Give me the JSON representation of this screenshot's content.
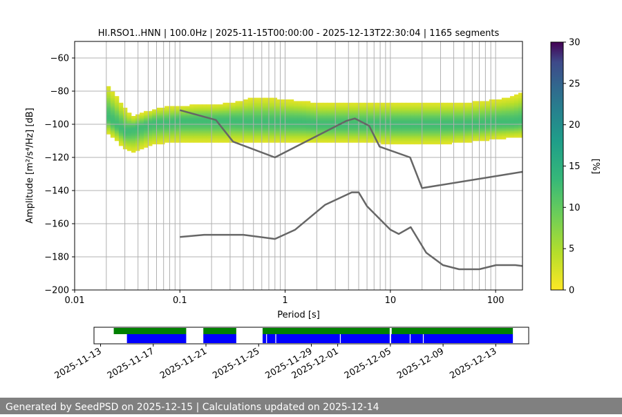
{
  "chart_data": [
    {
      "type": "heatmap",
      "title": "HI.RSO1..HNN | 100.0Hz | 2025-11-15T00:00:00 - 2025-12-13T22:30:04 | 1165 segments",
      "xlabel": "Period [s]",
      "ylabel": "Amplitude [m²/s⁴/Hz] [dB]",
      "x_scale": "log",
      "xlim": [
        0.01,
        180
      ],
      "ylim": [
        -200,
        -50
      ],
      "x_ticks": [
        0.01,
        0.1,
        1,
        10,
        100
      ],
      "x_tick_labels": [
        "0.01",
        "0.1",
        "1",
        "10",
        "100"
      ],
      "y_ticks": [
        -200,
        -180,
        -160,
        -140,
        -120,
        -100,
        -80,
        -60
      ],
      "y_tick_labels": [
        "−200",
        "−180",
        "−160",
        "−140",
        "−120",
        "−100",
        "−80",
        "−60"
      ],
      "grid": true,
      "colorbar": {
        "label": "[%]",
        "range": [
          0,
          30
        ],
        "ticks": [
          0,
          5,
          10,
          15,
          20,
          25,
          30
        ],
        "colormap": "viridis_r"
      },
      "psd_band": {
        "periods": [
          0.02,
          0.025,
          0.03,
          0.035,
          0.04,
          0.05,
          0.06,
          0.08,
          0.1,
          0.15,
          0.2,
          0.3,
          0.5,
          0.7,
          1,
          1.5,
          2,
          3,
          5,
          7,
          10,
          15,
          20,
          30,
          50,
          70,
          100,
          150,
          180
        ],
        "upper": [
          -75,
          -83,
          -90,
          -95,
          -94,
          -92,
          -90,
          -89,
          -89,
          -88,
          -88,
          -87,
          -84,
          -84,
          -85,
          -86,
          -87,
          -87,
          -87,
          -87,
          -87,
          -87,
          -87,
          -87,
          -87,
          -86,
          -85,
          -83,
          -81
        ],
        "lower": [
          -105,
          -110,
          -115,
          -117,
          -116,
          -113,
          -112,
          -111,
          -111,
          -111,
          -111,
          -111,
          -111,
          -111,
          -111,
          -111,
          -111,
          -111,
          -111,
          -111,
          -112,
          -112,
          -112,
          -112,
          -111,
          -110,
          -109,
          -108,
          -108
        ],
        "peak": [
          -95,
          -100,
          -104,
          -103,
          -102,
          -100,
          -99,
          -99,
          -98,
          -98,
          -98,
          -98,
          -99,
          -99,
          -99,
          -99,
          -100,
          -100,
          -100,
          -100,
          -100,
          -100,
          -100,
          -100,
          -100,
          -100,
          -99,
          -99,
          -98
        ]
      },
      "series": [
        {
          "role": "noise-model-high",
          "color": "#666666",
          "x": [
            0.1,
            0.22,
            0.32,
            0.8,
            3.8,
            4.6,
            6.3,
            7.9,
            15.4,
            20,
            180
          ],
          "y": [
            -91.5,
            -97.4,
            -110.5,
            -120,
            -98,
            -96.5,
            -101,
            -113.5,
            -120,
            -138.5,
            -128.7
          ]
        },
        {
          "role": "noise-model-low",
          "color": "#666666",
          "x": [
            0.1,
            0.17,
            0.4,
            0.8,
            1.24,
            2.4,
            4.3,
            5.0,
            6.0,
            10,
            12,
            15.6,
            21.9,
            31.6,
            45,
            70,
            101,
            154,
            180
          ],
          "y": [
            -168,
            -166.7,
            -166.7,
            -169.2,
            -163.7,
            -148.6,
            -141.1,
            -141.1,
            -149.5,
            -163.6,
            -166.2,
            -162.1,
            -177.5,
            -185,
            -187.5,
            -187.5,
            -185,
            -185,
            -185.5
          ]
        }
      ]
    },
    {
      "type": "timeline",
      "x_tick_labels": [
        "2025-11-13",
        "2025-11-17",
        "2025-11-21",
        "2025-11-25",
        "2025-11-29",
        "2025-12-01",
        "2025-12-05",
        "2025-12-09",
        "2025-12-13"
      ],
      "x_tick_days": [
        0,
        4,
        8,
        12,
        16,
        18,
        22,
        26,
        30
      ],
      "xlim_days": [
        -0.5,
        32.5
      ],
      "colors": {
        "green": "#008000",
        "blue": "#0000ff"
      },
      "green_segments": [
        [
          1,
          6.5
        ],
        [
          7.8,
          10.3
        ],
        [
          12.3,
          22
        ],
        [
          22.1,
          31.3
        ]
      ],
      "blue_segments": [
        [
          2,
          6.5
        ],
        [
          7.8,
          10.3
        ],
        [
          12.3,
          31.3
        ]
      ],
      "blue_gaps": [
        12.6,
        13.3,
        18.2,
        23.5,
        24.5
      ]
    }
  ],
  "footer": {
    "text": "Generated by SeedPSD on 2025-12-15 | Calculations updated on 2025-12-14"
  }
}
